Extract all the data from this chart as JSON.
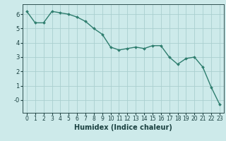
{
  "x": [
    0,
    1,
    2,
    3,
    4,
    5,
    6,
    7,
    8,
    9,
    10,
    11,
    12,
    13,
    14,
    15,
    16,
    17,
    18,
    19,
    20,
    21,
    22,
    23
  ],
  "y": [
    6.2,
    5.4,
    5.4,
    6.2,
    6.1,
    6.0,
    5.8,
    5.5,
    5.0,
    4.6,
    3.7,
    3.5,
    3.6,
    3.7,
    3.6,
    3.8,
    3.8,
    3.0,
    2.5,
    2.9,
    3.0,
    2.3,
    0.9,
    -0.3
  ],
  "line_color": "#2e7d6e",
  "marker": "D",
  "marker_size": 2.0,
  "line_width": 1.0,
  "bg_color": "#cdeaea",
  "grid_color": "#aacfcf",
  "xlabel": "Humidex (Indice chaleur)",
  "xlabel_fontsize": 7,
  "yticks": [
    0,
    1,
    2,
    3,
    4,
    5,
    6
  ],
  "ytick_labels": [
    "-0",
    "1",
    "2",
    "3",
    "4",
    "5",
    "6"
  ],
  "ylim": [
    -0.9,
    6.7
  ],
  "xlim": [
    -0.5,
    23.5
  ],
  "xtick_labels": [
    "0",
    "1",
    "2",
    "3",
    "4",
    "5",
    "6",
    "7",
    "8",
    "9",
    "10",
    "11",
    "12",
    "13",
    "14",
    "15",
    "16",
    "17",
    "18",
    "19",
    "20",
    "21",
    "22",
    "23"
  ],
  "tick_fontsize": 5.5,
  "tick_color": "#1a4040",
  "spine_color": "#2e5050"
}
